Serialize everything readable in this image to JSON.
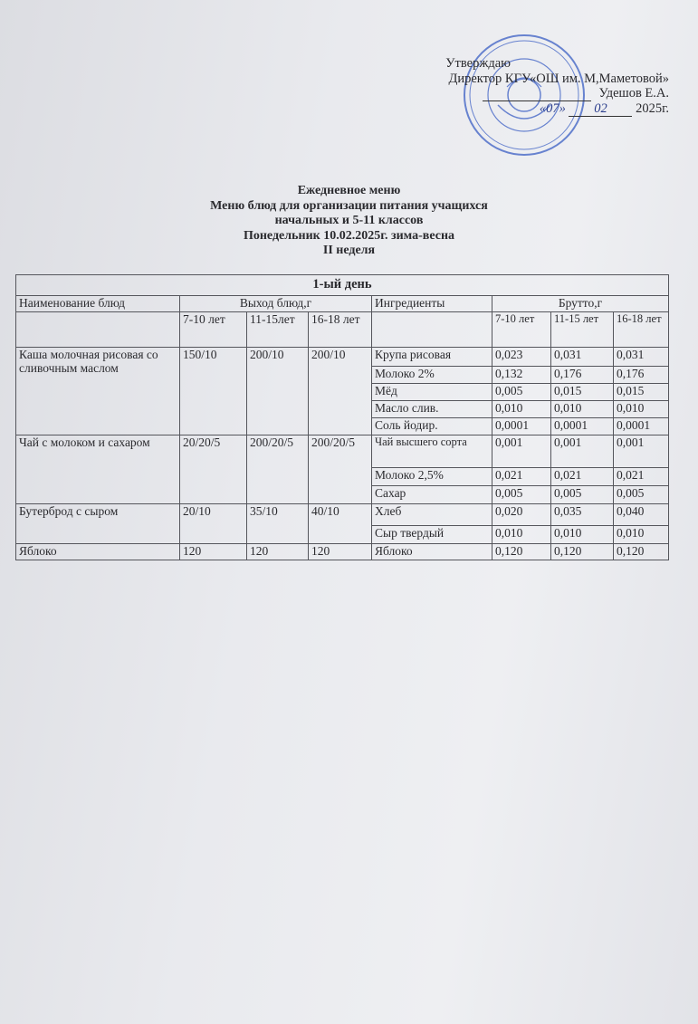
{
  "approval": {
    "line1": "Утверждаю",
    "line2": "Директор  КГУ«ОШ им. М,Маметовой»",
    "line3": "Удешов Е.А.",
    "date_day": "«07»",
    "date_month": "02",
    "date_year": "2025г.",
    "stamp_color": "#3b5fc4"
  },
  "heading": {
    "line1": "Ежедневное меню",
    "line2": "Меню блюд для организации питания учащихся",
    "line3": "начальных и  5-11 классов",
    "line4": "Понедельник  10.02.2025г. зима-весна",
    "line5": "II неделя"
  },
  "table": {
    "day_title": "1-ый день",
    "headers": {
      "dish": "Наименование блюд",
      "yield": "Выход блюд,г",
      "ingredients": "Ингредиенты",
      "gross": "Брутто,г"
    },
    "yield_ages": [
      "7-10 лет",
      "11-15лет",
      "16-18 лет"
    ],
    "gross_ages": [
      "7-10 лет",
      "11-15 лет",
      "16-18 лет"
    ],
    "dishes": [
      {
        "name": "Каша молочная рисовая со сливочным маслом",
        "yield": [
          "150/10",
          "200/10",
          "200/10"
        ],
        "ingredients": [
          {
            "name": "Крупа рисовая",
            "gross": [
              "0,023",
              "0,031",
              "0,031"
            ]
          },
          {
            "name": "Молоко 2%",
            "gross": [
              "0,132",
              "0,176",
              "0,176"
            ]
          },
          {
            "name": "Мёд",
            "gross": [
              "0,005",
              "0,015",
              "0,015"
            ]
          },
          {
            "name": "Масло слив.",
            "gross": [
              "0,010",
              "0,010",
              "0,010"
            ]
          },
          {
            "name": "Соль йодир.",
            "gross": [
              "0,0001",
              "0,0001",
              "0,0001"
            ]
          }
        ]
      },
      {
        "name": "Чай с молоком и сахаром",
        "yield": [
          "20/20/5",
          "200/20/5",
          "200/20/5"
        ],
        "ingredients": [
          {
            "name": "Чай высшего сорта",
            "gross": [
              "0,001",
              "0,001",
              "0,001"
            ]
          },
          {
            "name": "Молоко 2,5%",
            "gross": [
              "0,021",
              "0,021",
              "0,021"
            ]
          },
          {
            "name": "Сахар",
            "gross": [
              "0,005",
              "0,005",
              "0,005"
            ]
          }
        ]
      },
      {
        "name": "Бутерброд с сыром",
        "yield": [
          "20/10",
          "35/10",
          "40/10"
        ],
        "ingredients": [
          {
            "name": "Хлеб",
            "gross": [
              "0,020",
              "0,035",
              "0,040"
            ]
          },
          {
            "name": "Сыр твердый",
            "gross": [
              "0,010",
              "0,010",
              "0,010"
            ]
          }
        ]
      },
      {
        "name": "Яблоко",
        "yield": [
          "120",
          "120",
          "120"
        ],
        "ingredients": [
          {
            "name": "Яблоко",
            "gross": [
              "0,120",
              "0,120",
              "0,120"
            ]
          }
        ]
      }
    ]
  }
}
